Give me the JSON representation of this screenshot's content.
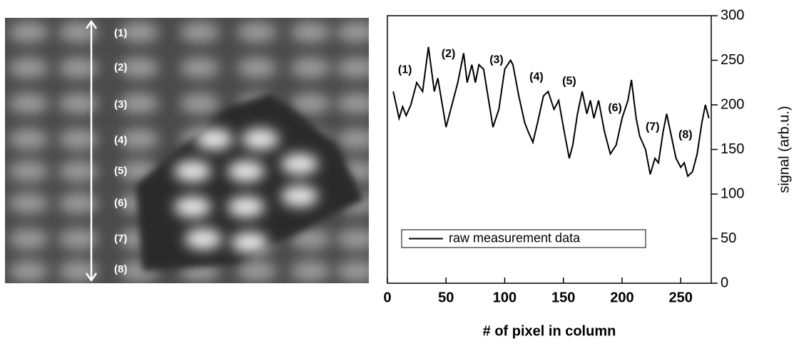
{
  "image": {
    "labels": [
      "(1)",
      "(2)",
      "(3)",
      "(4)",
      "(5)",
      "(6)",
      "(7)",
      "(8)"
    ]
  },
  "chart_data": {
    "type": "line",
    "x_label": "# of pixel in column",
    "y_label": "signal  (arb.u.)",
    "x": [
      5,
      10,
      13,
      16,
      20,
      25,
      30,
      35,
      40,
      43,
      50,
      55,
      60,
      65,
      68,
      72,
      75,
      78,
      82,
      90,
      95,
      100,
      105,
      107,
      112,
      117,
      120,
      124,
      128,
      133,
      137,
      142,
      146,
      150,
      155,
      158,
      162,
      166,
      170,
      173,
      176,
      180,
      185,
      190,
      195,
      200,
      205,
      208,
      212,
      215,
      220,
      224,
      228,
      231,
      235,
      238,
      242,
      246,
      250,
      253,
      256,
      260,
      264,
      268,
      271,
      274
    ],
    "series": [
      {
        "name": "raw measurement data",
        "color": "#000000",
        "values": [
          215,
          185,
          198,
          188,
          200,
          225,
          215,
          265,
          215,
          230,
          175,
          200,
          225,
          258,
          225,
          245,
          225,
          245,
          240,
          175,
          195,
          240,
          250,
          245,
          210,
          180,
          170,
          158,
          180,
          210,
          215,
          195,
          205,
          175,
          140,
          155,
          190,
          215,
          190,
          205,
          185,
          205,
          170,
          145,
          155,
          185,
          205,
          228,
          185,
          165,
          150,
          122,
          140,
          135,
          170,
          190,
          165,
          140,
          130,
          135,
          120,
          125,
          145,
          180,
          200,
          185
        ]
      }
    ],
    "annotations": [
      {
        "text": "(1)",
        "x": 15,
        "y": 239
      },
      {
        "text": "(2)",
        "x": 52,
        "y": 257
      },
      {
        "text": "(3)",
        "x": 93,
        "y": 250
      },
      {
        "text": "(4)",
        "x": 127,
        "y": 231
      },
      {
        "text": "(5)",
        "x": 155,
        "y": 226
      },
      {
        "text": "(6)",
        "x": 194,
        "y": 196
      },
      {
        "text": "(7)",
        "x": 226,
        "y": 175
      },
      {
        "text": "(8)",
        "x": 254,
        "y": 166
      }
    ],
    "xlim": [
      0,
      276
    ],
    "xticks": [
      0,
      50,
      100,
      150,
      200,
      250
    ],
    "ylim": [
      0,
      300
    ],
    "yticks": [
      0,
      50,
      100,
      150,
      200,
      250,
      300
    ],
    "y_axis_side": "right",
    "legend": "lower left",
    "grid": false
  }
}
